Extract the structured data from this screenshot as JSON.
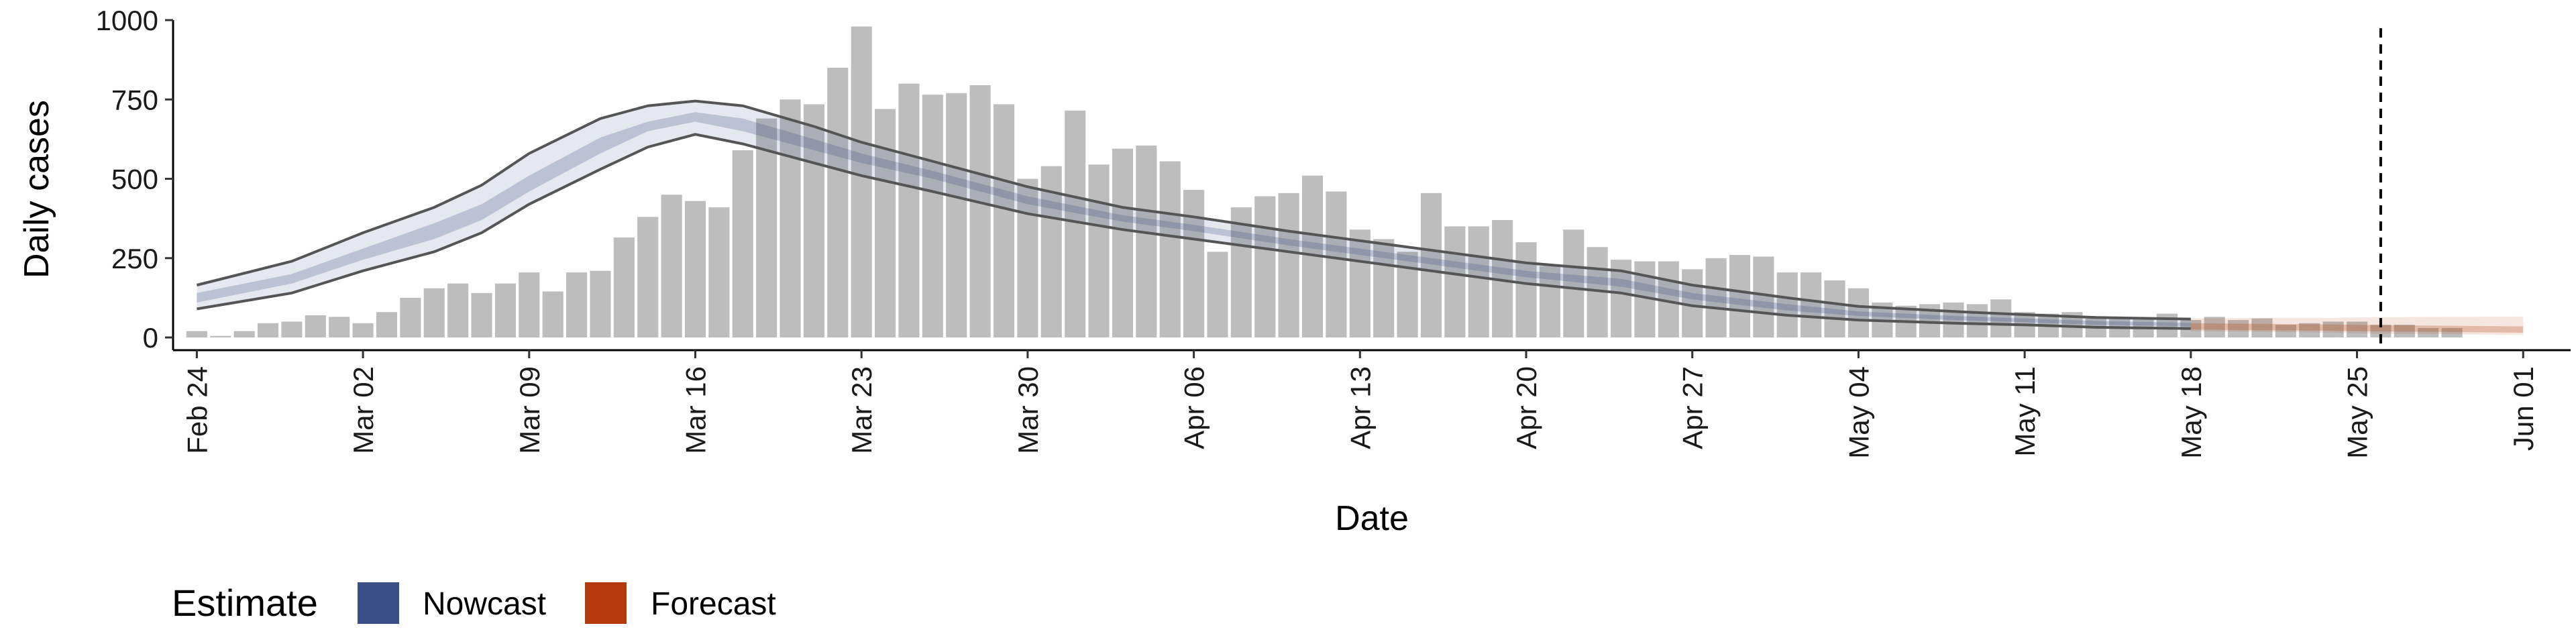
{
  "chart_data": {
    "type": "bar",
    "xlabel": "Date",
    "ylabel": "Daily cases",
    "x_range": [
      "2020-02-23",
      "2020-06-03"
    ],
    "ylim": [
      -40,
      1000
    ],
    "yticks": [
      0,
      250,
      500,
      750,
      1000
    ],
    "xticks": [
      {
        "date": "2020-02-24",
        "label": "Feb 24"
      },
      {
        "date": "2020-03-02",
        "label": "Mar 02"
      },
      {
        "date": "2020-03-09",
        "label": "Mar 09"
      },
      {
        "date": "2020-03-16",
        "label": "Mar 16"
      },
      {
        "date": "2020-03-23",
        "label": "Mar 23"
      },
      {
        "date": "2020-03-30",
        "label": "Mar 30"
      },
      {
        "date": "2020-04-06",
        "label": "Apr 06"
      },
      {
        "date": "2020-04-13",
        "label": "Apr 13"
      },
      {
        "date": "2020-04-20",
        "label": "Apr 20"
      },
      {
        "date": "2020-04-27",
        "label": "Apr 27"
      },
      {
        "date": "2020-05-04",
        "label": "May 04"
      },
      {
        "date": "2020-05-11",
        "label": "May 11"
      },
      {
        "date": "2020-05-18",
        "label": "May 18"
      },
      {
        "date": "2020-05-25",
        "label": "May 25"
      },
      {
        "date": "2020-06-01",
        "label": "Jun 01"
      }
    ],
    "grid": false,
    "reference_line": {
      "date": "2020-05-26",
      "style": "dashed",
      "color": "#000000"
    },
    "bar_color": "#bdbdbd",
    "legend": {
      "position": "bottom-left",
      "title": "Estimate",
      "entries": [
        {
          "label": "Nowcast",
          "color": "#3a4f85"
        },
        {
          "label": "Forecast",
          "color": "#b33a0a"
        }
      ]
    },
    "observed_cases": {
      "start_date": "2020-02-24",
      "values": [
        20,
        5,
        20,
        45,
        50,
        70,
        65,
        45,
        80,
        125,
        155,
        170,
        140,
        170,
        205,
        145,
        205,
        210,
        315,
        380,
        450,
        430,
        410,
        590,
        690,
        750,
        735,
        850,
        980,
        720,
        800,
        765,
        770,
        795,
        735,
        500,
        540,
        715,
        545,
        595,
        605,
        555,
        465,
        270,
        410,
        445,
        455,
        510,
        460,
        340,
        310,
        270,
        455,
        350,
        350,
        370,
        300,
        225,
        340,
        285,
        245,
        240,
        240,
        215,
        250,
        260,
        255,
        205,
        205,
        180,
        155,
        110,
        100,
        105,
        110,
        105,
        120,
        80,
        75,
        80,
        60,
        65,
        60,
        75,
        55,
        65,
        55,
        60,
        40,
        45,
        50,
        50,
        40,
        40,
        30,
        30
      ]
    },
    "series": [
      {
        "name": "Nowcast",
        "color": "#3a4f85",
        "dates": [
          "2020-02-24",
          "2020-02-28",
          "2020-03-02",
          "2020-03-05",
          "2020-03-07",
          "2020-03-09",
          "2020-03-12",
          "2020-03-14",
          "2020-03-16",
          "2020-03-18",
          "2020-03-21",
          "2020-03-23",
          "2020-03-26",
          "2020-03-30",
          "2020-04-03",
          "2020-04-06",
          "2020-04-10",
          "2020-04-13",
          "2020-04-17",
          "2020-04-20",
          "2020-04-24",
          "2020-04-27",
          "2020-05-01",
          "2020-05-04",
          "2020-05-08",
          "2020-05-11",
          "2020-05-14",
          "2020-05-18"
        ],
        "lower_90": [
          90,
          140,
          210,
          270,
          330,
          420,
          530,
          600,
          640,
          610,
          550,
          510,
          460,
          390,
          340,
          310,
          270,
          240,
          200,
          170,
          140,
          100,
          70,
          55,
          45,
          40,
          32,
          28
        ],
        "lower_50": [
          110,
          170,
          245,
          310,
          370,
          460,
          580,
          650,
          680,
          650,
          590,
          550,
          500,
          420,
          365,
          335,
          290,
          260,
          220,
          190,
          160,
          120,
          85,
          68,
          55,
          48,
          40,
          35
        ],
        "upper_50": [
          140,
          200,
          280,
          360,
          420,
          510,
          630,
          680,
          710,
          690,
          625,
          580,
          525,
          445,
          385,
          355,
          310,
          280,
          240,
          210,
          185,
          140,
          105,
          82,
          68,
          60,
          52,
          46
        ],
        "upper_90": [
          165,
          240,
          330,
          410,
          480,
          580,
          690,
          730,
          745,
          730,
          665,
          615,
          555,
          475,
          410,
          380,
          335,
          305,
          265,
          235,
          210,
          165,
          125,
          98,
          82,
          72,
          63,
          58
        ]
      },
      {
        "name": "Forecast",
        "color": "#b33a0a",
        "dates": [
          "2020-05-18",
          "2020-05-21",
          "2020-05-24",
          "2020-05-26",
          "2020-05-29",
          "2020-06-01"
        ],
        "lower_90": [
          20,
          18,
          15,
          12,
          10,
          8
        ],
        "lower_50": [
          25,
          23,
          21,
          19,
          17,
          15
        ],
        "upper_50": [
          45,
          43,
          41,
          39,
          37,
          35
        ],
        "upper_90": [
          60,
          62,
          62,
          64,
          65,
          66
        ]
      }
    ]
  }
}
